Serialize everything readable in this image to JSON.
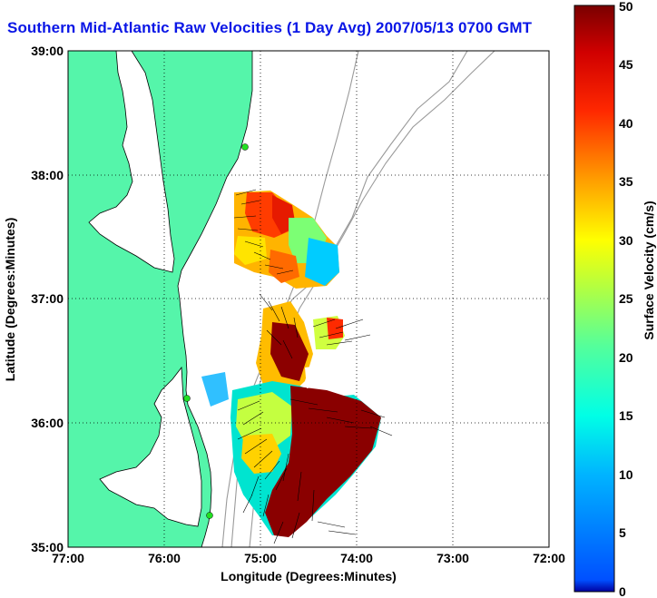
{
  "title": "Southern Mid-Atlantic Raw Velocities (1 Day Avg) 2007/05/13 0700 GMT",
  "map": {
    "xlabel": "Longitude (Degrees:Minutes)",
    "ylabel": "Latitude (Degrees:Minutes)",
    "x_ticks": [
      "77:00",
      "76:00",
      "75:00",
      "74:00",
      "73:00",
      "72:00"
    ],
    "y_ticks": [
      "39:00",
      "38:00",
      "37:00",
      "36:00",
      "35:00"
    ],
    "lon_range": [
      -77.0,
      -72.0
    ],
    "lat_range": [
      35.0,
      39.0
    ],
    "grid": "dotted",
    "colors": {
      "land": "#55f5aa",
      "water": "#ffffff",
      "coast": "#000000",
      "bathymetry": "#9a9a9a",
      "station": "#22e022"
    }
  },
  "colorbar": {
    "label": "Surface Velocity (cm/s)",
    "ticks": [
      "0",
      "5",
      "10",
      "15",
      "20",
      "25",
      "30",
      "35",
      "40",
      "45",
      "50"
    ],
    "min": 0,
    "max": 50,
    "colormap": "jet"
  }
}
